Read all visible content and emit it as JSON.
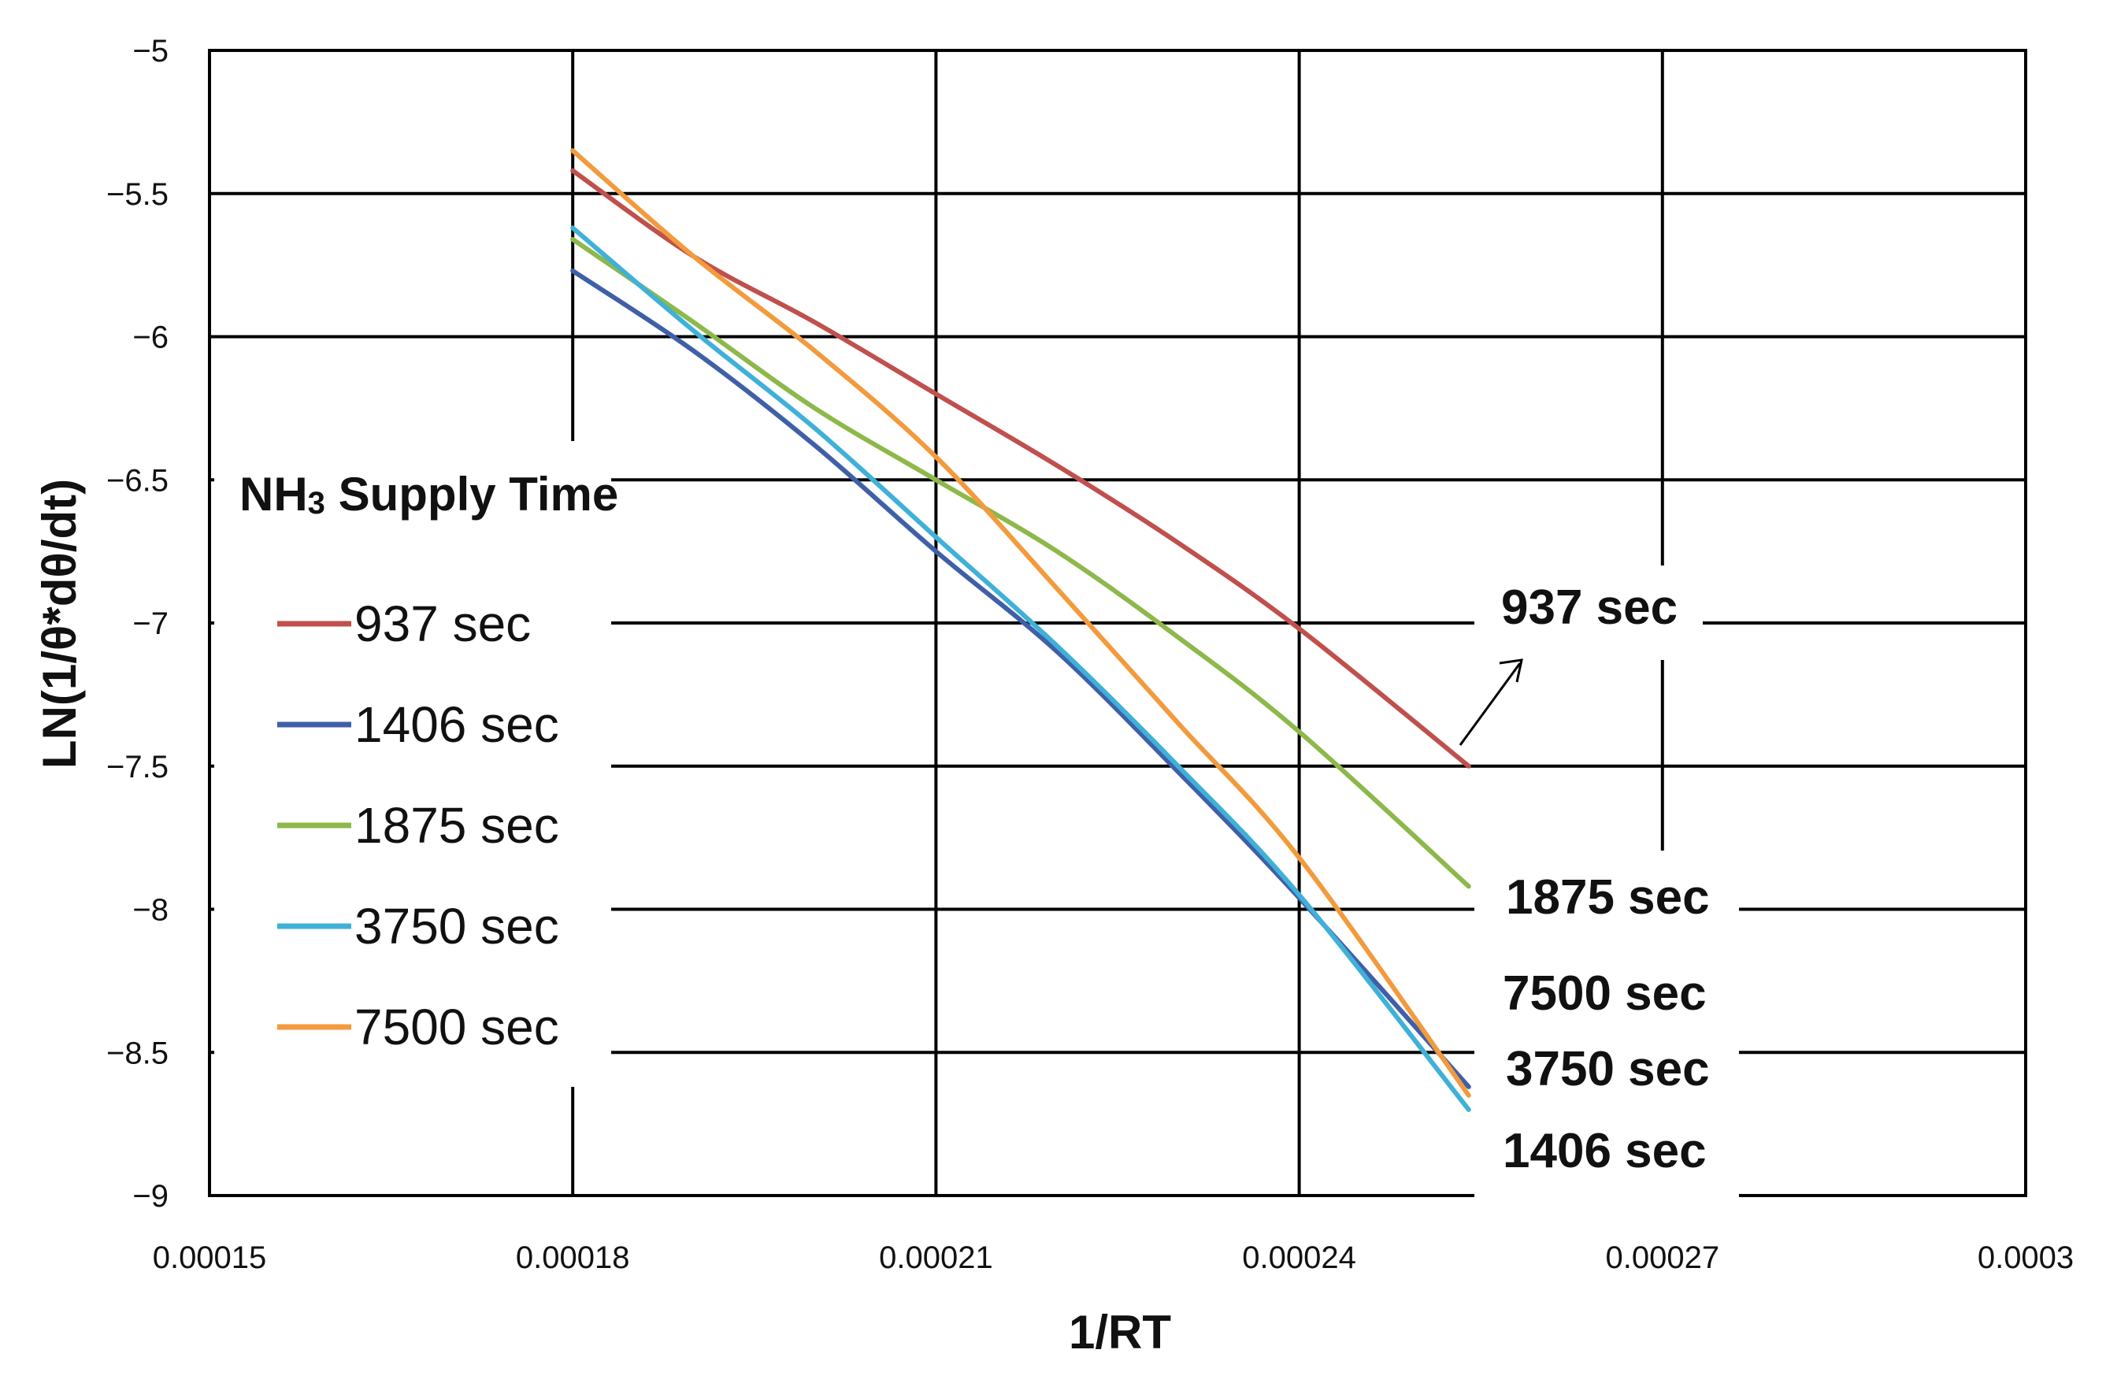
{
  "chart_data": {
    "type": "line",
    "xlabel": "1/RT",
    "ylabel": "LN(1/θ*dθ/dt)",
    "xlim": [
      0.00015,
      0.0003
    ],
    "ylim": [
      -9,
      -5
    ],
    "x_ticks": [
      "0.00015",
      "0.00018",
      "0.00021",
      "0.00024",
      "0.00027",
      "0.0003"
    ],
    "y_ticks": [
      "−5",
      "−5.5",
      "−6",
      "−6.5",
      "−7",
      "−7.5",
      "−8",
      "−8.5",
      "−9"
    ],
    "grid": true,
    "legend": {
      "title_main": "NH",
      "title_sub": "3",
      "title_rest": " Supply Time",
      "placement": "left"
    },
    "series": [
      {
        "name": "937 sec",
        "color": "#c0504d",
        "x": [
          0.00018,
          0.00019,
          0.0002,
          0.00021,
          0.00022,
          0.00023,
          0.00024,
          0.000254
        ],
        "y": [
          -5.42,
          -5.72,
          -5.95,
          -6.2,
          -6.45,
          -6.72,
          -7.02,
          -7.5
        ]
      },
      {
        "name": "1406 sec",
        "color": "#3f60a8",
        "x": [
          0.00018,
          0.00019,
          0.0002,
          0.00021,
          0.00022,
          0.00023,
          0.00024,
          0.000254
        ],
        "y": [
          -5.77,
          -6.05,
          -6.38,
          -6.75,
          -7.1,
          -7.52,
          -7.96,
          -8.62
        ]
      },
      {
        "name": "1875 sec",
        "color": "#8db84a",
        "x": [
          0.00018,
          0.00019,
          0.0002,
          0.00021,
          0.00022,
          0.00023,
          0.00024,
          0.000254
        ],
        "y": [
          -5.66,
          -5.95,
          -6.25,
          -6.5,
          -6.75,
          -7.05,
          -7.38,
          -7.92
        ]
      },
      {
        "name": "3750 sec",
        "color": "#3fb1d8",
        "x": [
          0.00018,
          0.00019,
          0.0002,
          0.00021,
          0.00022,
          0.00023,
          0.00024,
          0.000254
        ],
        "y": [
          -5.62,
          -5.98,
          -6.32,
          -6.7,
          -7.08,
          -7.5,
          -7.95,
          -8.7
        ]
      },
      {
        "name": "7500 sec",
        "color": "#f39a3c",
        "x": [
          0.00018,
          0.00019,
          0.0002,
          0.00021,
          0.00022,
          0.00023,
          0.00024,
          0.000254
        ],
        "y": [
          -5.35,
          -5.72,
          -6.05,
          -6.42,
          -6.88,
          -7.35,
          -7.82,
          -8.65
        ]
      }
    ],
    "end_labels": [
      "937 sec",
      "1875 sec",
      "7500 sec",
      "3750 sec",
      "1406 sec"
    ]
  }
}
